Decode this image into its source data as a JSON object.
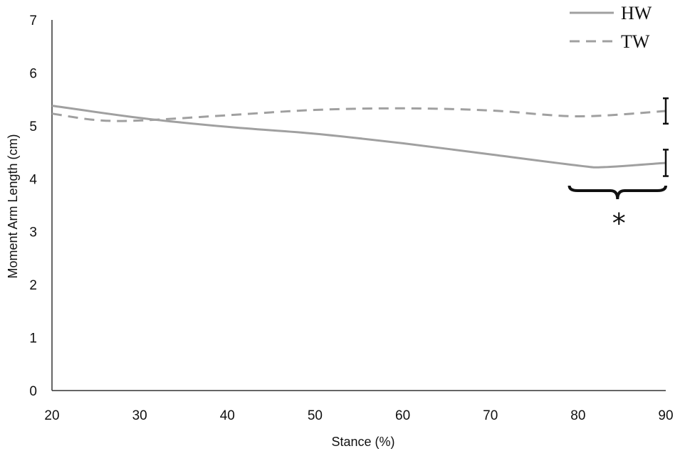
{
  "chart_data": {
    "type": "line",
    "xlabel": "Stance (%)",
    "ylabel": "Moment Arm Length (cm)",
    "xlim": [
      20,
      90
    ],
    "ylim": [
      0,
      7
    ],
    "x_ticks": [
      "20",
      "30",
      "40",
      "50",
      "60",
      "70",
      "80",
      "90"
    ],
    "y_ticks": [
      "0",
      "1",
      "2",
      "3",
      "4",
      "5",
      "6",
      "7"
    ],
    "grid": false,
    "legend_position": "top-right",
    "series": [
      {
        "name": "HW",
        "style": "solid",
        "color": "#a0a0a0",
        "x": [
          20,
          30,
          40,
          50,
          60,
          70,
          80,
          83,
          90
        ],
        "y": [
          5.38,
          5.15,
          4.98,
          4.85,
          4.67,
          4.46,
          4.25,
          4.22,
          4.3
        ],
        "error_bar_at_end": 0.25
      },
      {
        "name": "TW",
        "style": "dashed",
        "color": "#a0a0a0",
        "x": [
          20,
          25,
          30,
          40,
          50,
          60,
          70,
          80,
          90
        ],
        "y": [
          5.23,
          5.11,
          5.1,
          5.2,
          5.3,
          5.33,
          5.29,
          5.18,
          5.28
        ],
        "error_bar_at_end": 0.24
      }
    ],
    "annotation": {
      "text": "*",
      "bracket_from_x": 79,
      "bracket_to_x": 90
    }
  }
}
